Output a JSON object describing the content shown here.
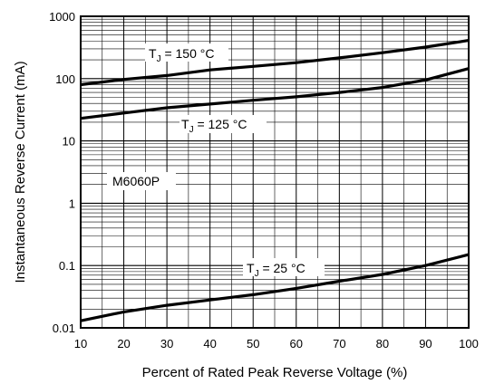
{
  "chart_data": {
    "type": "line",
    "xlabel": "Percent of Rated Peak Reverse Voltage (%)",
    "ylabel": "Instantaneous Reverse Current (mA)",
    "xlim": [
      10,
      100
    ],
    "ylim": [
      0.01,
      1000
    ],
    "yscale": "log",
    "grid": true,
    "x_ticks": [
      "10",
      "20",
      "30",
      "40",
      "50",
      "60",
      "70",
      "80",
      "90",
      "100"
    ],
    "y_ticks": [
      "0.01",
      "0.1",
      "1",
      "10",
      "100",
      "1000"
    ],
    "x": [
      10,
      20,
      30,
      40,
      50,
      60,
      70,
      80,
      90,
      100
    ],
    "series": [
      {
        "name": "TJ = 150 °C",
        "label_main": "T",
        "label_sub": "J",
        "label_rest": " = 150 °C",
        "values": [
          80,
          97,
          112,
          138,
          157,
          180,
          215,
          260,
          320,
          410
        ]
      },
      {
        "name": "TJ = 125 °C",
        "label_main": "T",
        "label_sub": "J",
        "label_rest": " = 125 °C",
        "values": [
          23,
          28,
          34,
          39,
          45,
          51,
          60,
          72,
          95,
          145
        ]
      },
      {
        "name": "TJ = 25 °C",
        "label_main": "T",
        "label_sub": "J",
        "label_rest": " = 25 °C",
        "values": [
          0.013,
          0.018,
          0.023,
          0.028,
          0.034,
          0.043,
          0.056,
          0.072,
          0.1,
          0.15
        ]
      }
    ],
    "annotation": "M6060P"
  }
}
